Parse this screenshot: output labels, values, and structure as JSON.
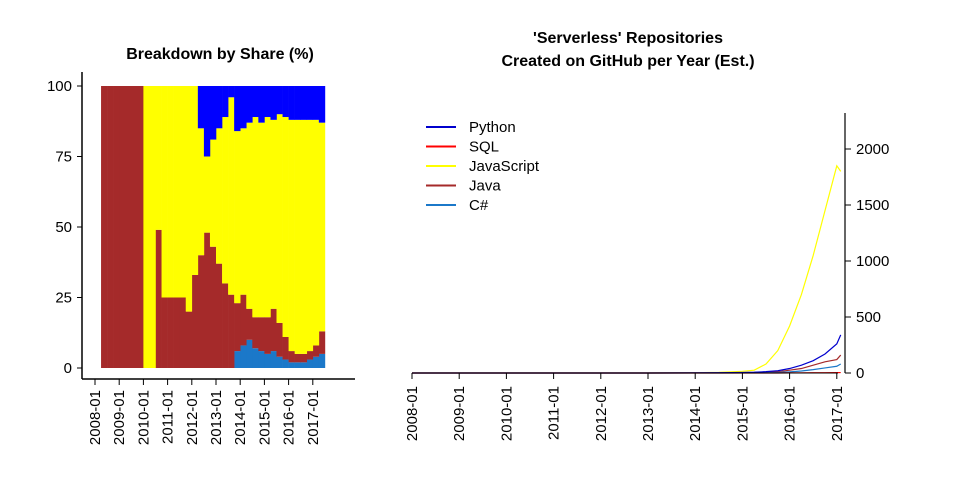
{
  "chart_data": [
    {
      "type": "area",
      "title": "Breakdown by Share (%)",
      "xlabel": "",
      "ylabel": "",
      "x_ticks": [
        "2008-01",
        "2009-01",
        "2010-01",
        "2011-01",
        "2012-01",
        "2013-01",
        "2014-01",
        "2015-01",
        "2016-01",
        "2017-01"
      ],
      "y_ticks": [
        "0",
        "25",
        "50",
        "75",
        "100"
      ],
      "ylim": [
        0,
        100
      ],
      "grid": false,
      "legend": "none",
      "months": [
        "2008-04",
        "2008-07",
        "2008-10",
        "2009-01",
        "2009-04",
        "2009-07",
        "2009-10",
        "2010-01",
        "2010-04",
        "2010-07",
        "2010-10",
        "2011-01",
        "2011-04",
        "2011-07",
        "2011-10",
        "2012-01",
        "2012-04",
        "2012-07",
        "2012-10",
        "2013-01",
        "2013-04",
        "2013-07",
        "2013-10",
        "2014-01",
        "2014-04",
        "2014-07",
        "2014-10",
        "2015-01",
        "2015-04",
        "2015-07",
        "2015-10",
        "2016-01",
        "2016-04",
        "2016-07",
        "2016-10",
        "2017-01",
        "2017-04"
      ],
      "series": [
        {
          "name": "C#",
          "color": "#1b78c9",
          "values": [
            0,
            0,
            0,
            0,
            0,
            0,
            0,
            0,
            0,
            0,
            0,
            0,
            0,
            0,
            0,
            0,
            0,
            0,
            0,
            0,
            0,
            0,
            6,
            8,
            10,
            7,
            6,
            5,
            6,
            4,
            3,
            2,
            2,
            2,
            3,
            4,
            5
          ]
        },
        {
          "name": "Java",
          "color": "#a52a2a",
          "values": [
            100,
            100,
            100,
            100,
            100,
            100,
            100,
            0,
            0,
            49,
            25,
            25,
            25,
            25,
            20,
            33,
            40,
            48,
            43,
            37,
            30,
            26,
            17,
            18,
            11,
            11,
            12,
            13,
            15,
            12,
            8,
            4,
            3,
            3,
            3,
            4,
            8
          ]
        },
        {
          "name": "JavaScript",
          "color": "#ffff00",
          "values": [
            0,
            0,
            0,
            0,
            0,
            0,
            0,
            100,
            100,
            51,
            75,
            75,
            75,
            75,
            80,
            67,
            45,
            27,
            38,
            48,
            59,
            70,
            61,
            59,
            66,
            71,
            69,
            71,
            67,
            74,
            78,
            82,
            83,
            83,
            82,
            80,
            74
          ]
        },
        {
          "name": "SQL",
          "color": "#ff0000",
          "values": [
            0,
            0,
            0,
            0,
            0,
            0,
            0,
            0,
            0,
            0,
            0,
            0,
            0,
            0,
            0,
            0,
            0,
            0,
            0,
            0,
            0,
            0,
            0,
            0,
            0,
            0,
            0,
            0,
            0,
            0,
            0,
            0,
            0,
            0,
            0,
            0,
            0
          ]
        },
        {
          "name": "Python",
          "color": "#0000ff",
          "values": [
            0,
            0,
            0,
            0,
            0,
            0,
            0,
            0,
            0,
            0,
            0,
            0,
            0,
            0,
            0,
            0,
            15,
            25,
            19,
            15,
            11,
            4,
            16,
            15,
            13,
            11,
            13,
            11,
            12,
            10,
            11,
            12,
            12,
            12,
            12,
            12,
            13
          ]
        }
      ]
    },
    {
      "type": "line",
      "title": "'Serverless' Repositories",
      "subtitle": "Created on GitHub per Year (Est.)",
      "xlabel": "",
      "ylabel": "",
      "x_ticks": [
        "2008-01",
        "2009-01",
        "2010-01",
        "2011-01",
        "2012-01",
        "2013-01",
        "2014-01",
        "2015-01",
        "2016-01",
        "2017-01"
      ],
      "y_ticks": [
        "0",
        "500",
        "1000",
        "1500",
        "2000"
      ],
      "ylim": [
        0,
        2200
      ],
      "y_axis_side": "right",
      "grid": false,
      "legend": "top-left",
      "x": [
        "2008-01",
        "2009-01",
        "2010-01",
        "2011-01",
        "2012-01",
        "2013-01",
        "2014-01",
        "2014-07",
        "2015-01",
        "2015-04",
        "2015-07",
        "2015-10",
        "2016-01",
        "2016-04",
        "2016-07",
        "2016-10",
        "2017-01",
        "2017-02"
      ],
      "series": [
        {
          "name": "Python",
          "color": "#0000cd",
          "values": [
            0,
            0,
            0,
            0,
            0,
            0,
            1,
            2,
            5,
            7,
            12,
            20,
            40,
            70,
            110,
            170,
            260,
            340
          ]
        },
        {
          "name": "SQL",
          "color": "#ff0000",
          "values": [
            0,
            0,
            0,
            0,
            0,
            0,
            0,
            0,
            0,
            0,
            0,
            0,
            1,
            1,
            2,
            2,
            3,
            4
          ]
        },
        {
          "name": "JavaScript",
          "color": "#ffff00",
          "values": [
            0,
            0,
            0,
            0,
            0,
            0,
            2,
            6,
            15,
            25,
            80,
            200,
            420,
            700,
            1050,
            1450,
            1850,
            1800
          ]
        },
        {
          "name": "Java",
          "color": "#a52a2a",
          "values": [
            0,
            0,
            0,
            0,
            0,
            0,
            1,
            1,
            3,
            5,
            8,
            12,
            25,
            40,
            70,
            100,
            120,
            160
          ]
        },
        {
          "name": "C#",
          "color": "#1b78c9",
          "values": [
            0,
            0,
            0,
            0,
            0,
            0,
            0,
            0,
            1,
            2,
            3,
            5,
            10,
            18,
            30,
            45,
            60,
            80
          ]
        }
      ]
    }
  ]
}
